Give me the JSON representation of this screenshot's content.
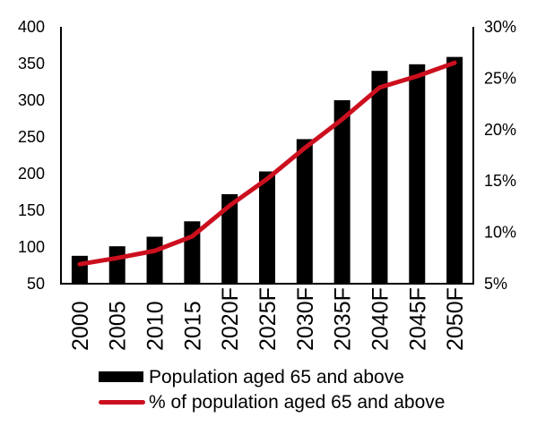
{
  "colors": {
    "bar": "#000000",
    "line": "#CC0F1E",
    "axis": "#000000",
    "text": "#000000",
    "background": "#FFFFFF"
  },
  "legend": {
    "items": [
      {
        "label": "Population aged 65 and above",
        "swatch": "bar"
      },
      {
        "label": "% of population aged 65 and above",
        "swatch": "line"
      }
    ]
  },
  "chart_data": {
    "type": "bar+line",
    "title": "",
    "categories": [
      "2000",
      "2005",
      "2010",
      "2015",
      "2020F",
      "2025F",
      "2030F",
      "2035F",
      "2040F",
      "2045F",
      "2050F"
    ],
    "series": [
      {
        "name": "Population aged 65 and above",
        "type": "bar",
        "axis": "left",
        "values": [
          88,
          101,
          114,
          135,
          172,
          203,
          247,
          300,
          340,
          349,
          359
        ]
      },
      {
        "name": "% of population aged 65 and above",
        "type": "line",
        "axis": "right",
        "values": [
          6.9,
          7.5,
          8.2,
          9.6,
          12.6,
          15.2,
          18.2,
          21.0,
          24.1,
          25.2,
          26.5
        ]
      }
    ],
    "left_axis": {
      "min": 50,
      "max": 400,
      "tick_step": 50,
      "ticks": [
        400,
        350,
        300,
        250,
        200,
        150,
        100,
        50
      ]
    },
    "right_axis": {
      "min": 5,
      "max": 30,
      "tick_step": 5,
      "format": "percent",
      "ticks": [
        "30%",
        "25%",
        "20%",
        "15%",
        "10%",
        "5%"
      ],
      "tick_values": [
        30,
        25,
        20,
        15,
        10,
        5
      ]
    },
    "grid": false,
    "legend_position": "bottom"
  }
}
